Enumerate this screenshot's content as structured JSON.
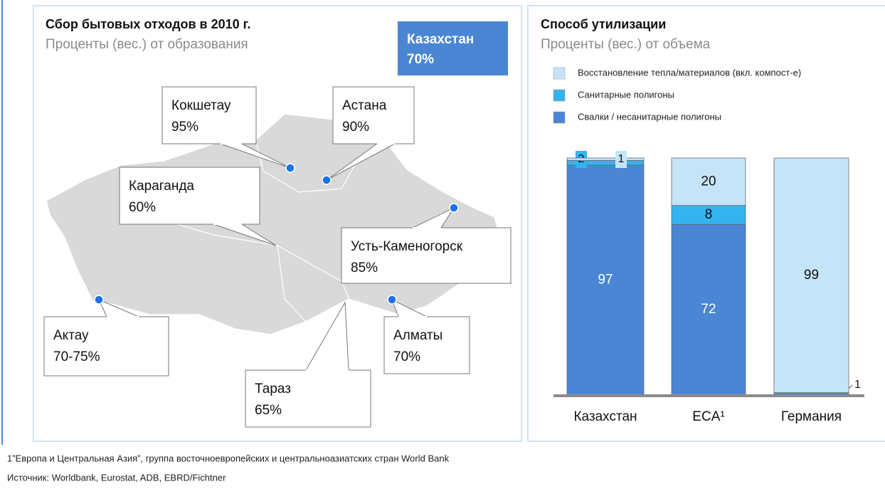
{
  "map": {
    "title": "Сбор бытовых отходов в 2010 г.",
    "subtitle": "Проценты (вес.) от образования",
    "badge": {
      "name": "Казахстан",
      "value": "70%"
    },
    "cities": [
      {
        "name": "Кокшетау",
        "value": "95%"
      },
      {
        "name": "Астана",
        "value": "90%"
      },
      {
        "name": "Караганда",
        "value": "60%"
      },
      {
        "name": "Усть-Каменогорск",
        "value": "85%"
      },
      {
        "name": "Актау",
        "value": "70-75%"
      },
      {
        "name": "Алматы",
        "value": "70%"
      },
      {
        "name": "Тараз",
        "value": "65%"
      }
    ]
  },
  "chart_data": {
    "type": "stacked_bar",
    "title": "Способ утилизации",
    "subtitle": "Проценты (вес.) от объема",
    "categories": [
      "Казахстан",
      "ECA¹",
      "Германия"
    ],
    "ylim": [
      0,
      100
    ],
    "series": [
      {
        "name": "Свалки / несанитарные полигоны",
        "color": "#4a86d4",
        "values": [
          97,
          72,
          1
        ]
      },
      {
        "name": "Санитарные полигоны",
        "color": "#33b3ef",
        "values": [
          2,
          8,
          0
        ]
      },
      {
        "name": "Восстановление тепла/материалов (вкл. компост-е)",
        "color": "#c6e4f8",
        "values": [
          1,
          20,
          99
        ]
      }
    ]
  },
  "footnotes": [
    "1”Европа и Центральная Азия”, группа восточноевропейских и центральноазиатских стран World Bank",
    "Источник: Worldbank, Eurostat, ADB, EBRD/Fichtner"
  ]
}
